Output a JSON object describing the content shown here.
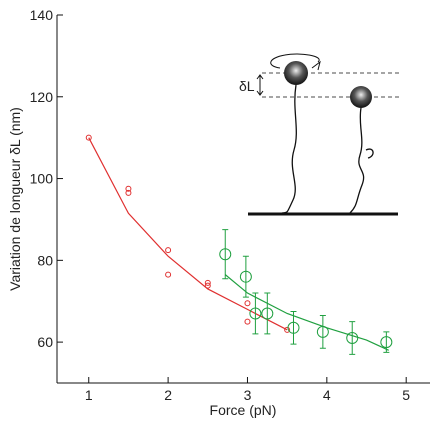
{
  "chart_data": {
    "type": "scatter",
    "x_label": "Force (pN)",
    "y_label": "Variation de longueur δL (nm)",
    "annotation": "δL",
    "xlim": [
      0.6,
      5.3
    ],
    "ylim": [
      50,
      140
    ],
    "xticks": [
      1,
      2,
      3,
      4,
      5
    ],
    "yticks": [
      60,
      80,
      100,
      120,
      140
    ],
    "series": [
      {
        "color": "#e03030",
        "marker": "small-circle",
        "x": [
          1,
          1.5,
          1.5,
          2,
          2,
          2.5,
          2.5,
          3,
          3,
          3.5
        ],
        "values": [
          110,
          97.5,
          96.5,
          82.5,
          76.5,
          74.5,
          73.8,
          69.5,
          65,
          63
        ]
      },
      {
        "color": "#20a040",
        "marker": "circle",
        "x": [
          2.72,
          2.98,
          3.1,
          3.25,
          3.58,
          3.95,
          4.32,
          4.75
        ],
        "values": [
          81.5,
          76,
          67,
          67,
          63.5,
          62.5,
          61,
          60
        ],
        "errors": [
          6,
          5,
          5,
          5,
          4,
          4,
          4,
          2.5
        ]
      }
    ],
    "fits": [
      {
        "color": "#e03030",
        "x": [
          1,
          1.5,
          2,
          2.5,
          3,
          3.5
        ],
        "values": [
          110,
          91.5,
          81,
          73,
          68,
          63
        ]
      },
      {
        "color": "#20a040",
        "x": [
          2.72,
          3,
          3.5,
          4,
          4.5,
          4.78
        ],
        "values": [
          76.5,
          72,
          67,
          63.5,
          60.5,
          58
        ]
      }
    ]
  }
}
